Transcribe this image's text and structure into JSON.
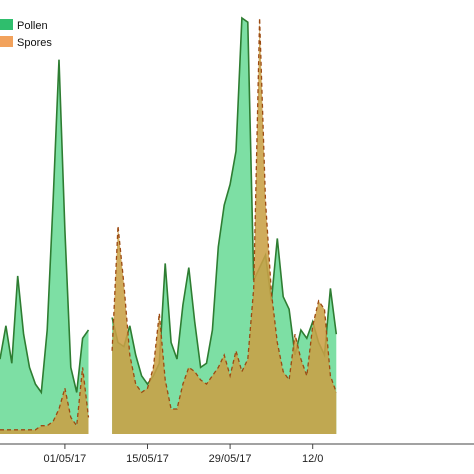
{
  "chart_data": {
    "type": "area",
    "title": "",
    "xlabel": "",
    "ylabel": "",
    "ylim": [
      0,
      100
    ],
    "grid": false,
    "legend_position": "top-left",
    "x_ticks": [
      "01/05/17",
      "15/05/17",
      "29/05/17",
      "12/0"
    ],
    "series": [
      {
        "name": "Pollen",
        "color": "#2e7d32",
        "fill": "#6fdc9a",
        "line_style": "solid",
        "segments": [
          {
            "x": [
              "20/04/17",
              "21/04/17",
              "22/04/17",
              "23/04/17",
              "24/04/17",
              "25/04/17",
              "26/04/17",
              "27/04/17",
              "28/04/17",
              "29/04/17",
              "30/04/17",
              "01/05/17",
              "02/05/17",
              "03/05/17",
              "04/05/17",
              "05/05/17"
            ],
            "values": [
              18,
              26,
              17,
              38,
              24,
              16,
              12,
              10,
              25,
              56,
              90,
              49,
              16,
              10,
              23,
              25
            ]
          },
          {
            "x": [
              "09/05/17",
              "10/05/17",
              "11/05/17",
              "12/05/17",
              "13/05/17",
              "14/05/17",
              "15/05/17",
              "16/05/17",
              "17/05/17",
              "18/05/17",
              "19/05/17",
              "20/05/17",
              "21/05/17",
              "22/05/17",
              "23/05/17",
              "24/05/17",
              "25/05/17",
              "26/05/17",
              "27/05/17",
              "28/05/17",
              "29/05/17",
              "30/05/17",
              "31/05/17",
              "01/06/17",
              "02/06/17",
              "03/06/17",
              "04/06/17",
              "05/06/17",
              "06/06/17",
              "07/06/17",
              "08/06/17",
              "09/06/17",
              "10/06/17",
              "11/06/17",
              "12/06/17",
              "13/06/17",
              "14/06/17",
              "15/06/17",
              "16/06/17"
            ],
            "values": [
              28,
              22,
              21,
              26,
              19,
              14,
              12,
              14,
              17,
              41,
              22,
              18,
              31,
              40,
              27,
              16,
              17,
              25,
              45,
              55,
              60,
              68,
              100,
              99,
              37,
              40,
              43,
              32,
              47,
              33,
              30,
              19,
              25,
              23,
              27,
              22,
              19,
              35,
              24
            ]
          }
        ]
      },
      {
        "name": "Spores",
        "color": "#9c4a12",
        "fill": "#c9a046",
        "line_style": "dashed",
        "segments": [
          {
            "x": [
              "20/04/17",
              "21/04/17",
              "22/04/17",
              "23/04/17",
              "24/04/17",
              "25/04/17",
              "26/04/17",
              "27/04/17",
              "28/04/17",
              "29/04/17",
              "30/04/17",
              "01/05/17",
              "02/05/17",
              "03/05/17",
              "04/05/17",
              "05/05/17"
            ],
            "values": [
              1,
              1,
              1,
              1,
              1,
              1,
              1,
              2,
              2,
              3,
              6,
              11,
              4,
              2,
              16,
              4
            ]
          },
          {
            "x": [
              "09/05/17",
              "10/05/17",
              "11/05/17",
              "12/05/17",
              "13/05/17",
              "14/05/17",
              "15/05/17",
              "16/05/17",
              "17/05/17",
              "18/05/17",
              "19/05/17",
              "20/05/17",
              "21/05/17",
              "22/05/17",
              "23/05/17",
              "24/05/17",
              "25/05/17",
              "26/05/17",
              "27/05/17",
              "28/05/17",
              "29/05/17",
              "30/05/17",
              "31/05/17",
              "01/06/17",
              "02/06/17",
              "03/06/17",
              "04/06/17",
              "05/06/17",
              "06/06/17",
              "07/06/17",
              "08/06/17",
              "09/06/17",
              "10/06/17",
              "11/06/17",
              "12/06/17",
              "13/06/17",
              "14/06/17",
              "15/06/17",
              "16/06/17"
            ],
            "values": [
              20,
              50,
              36,
              19,
              12,
              10,
              11,
              16,
              29,
              13,
              6,
              6,
              12,
              16,
              15,
              13,
              12,
              14,
              16,
              19,
              14,
              20,
              15,
              18,
              35,
              100,
              56,
              34,
              22,
              15,
              13,
              24,
              18,
              14,
              26,
              32,
              30,
              14,
              10
            ]
          }
        ]
      }
    ]
  }
}
